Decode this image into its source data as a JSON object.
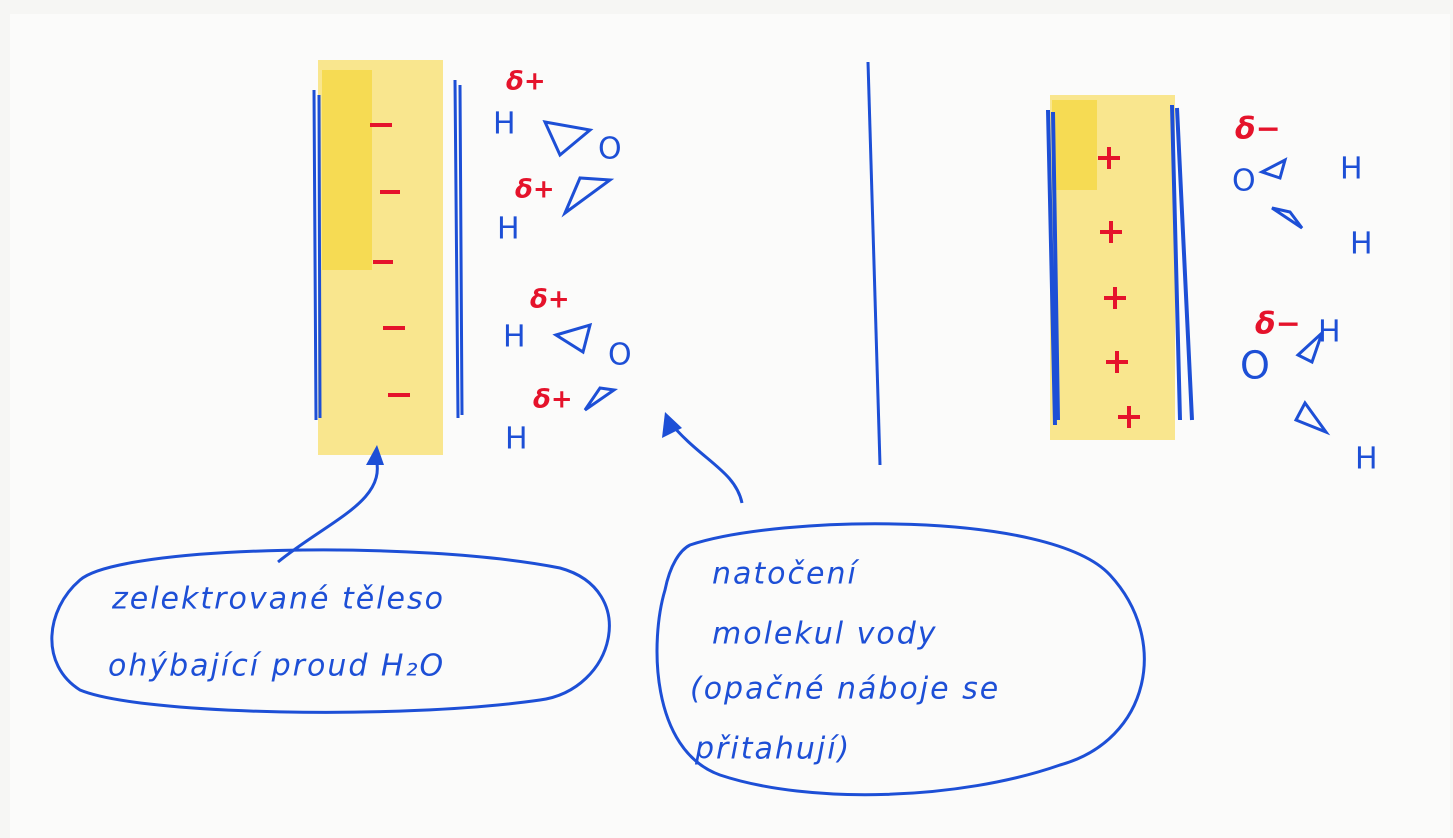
{
  "left_panel": {
    "molecules": [
      {
        "charge": "δ+",
        "atoms": [
          "H",
          "O"
        ]
      },
      {
        "charge": "δ+",
        "atoms": [
          "H"
        ]
      },
      {
        "charge": "δ+",
        "atoms": [
          "H",
          "O"
        ]
      },
      {
        "charge": "δ+",
        "atoms": [
          "H"
        ]
      }
    ]
  },
  "right_panel": {
    "molecules": [
      {
        "charge": "δ−",
        "atoms": [
          "O",
          "H",
          "H"
        ]
      },
      {
        "charge": "δ−",
        "atoms": [
          "O",
          "H",
          "H"
        ]
      }
    ]
  },
  "callouts": [
    {
      "lines": [
        "zelektrované těleso",
        "ohýbající proud H₂O"
      ]
    },
    {
      "lines": [
        "natočení",
        "molekul vody",
        "(opačné náboje se",
        "přitahují)"
      ]
    }
  ]
}
